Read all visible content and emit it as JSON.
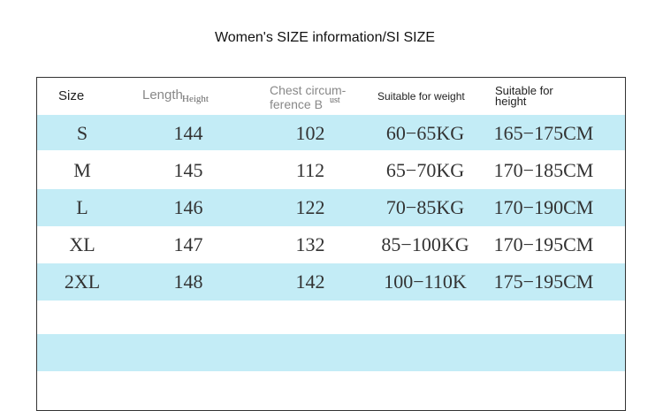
{
  "header": {
    "title": "Women's SIZE information/SI SIZE"
  },
  "table": {
    "headers": {
      "size": "Size",
      "length": "Length",
      "height_overlay": "Height",
      "chest_line1": "Chest circum-",
      "chest_line2": "ference B",
      "chest_overlay": "ust",
      "weight": "Suitable for weight",
      "height_line1": "Suitable for",
      "height_line2": "height"
    },
    "rows": [
      [
        "S",
        "144",
        "102",
        "60−65KG",
        "165−175CM"
      ],
      [
        "M",
        "145",
        "112",
        "65−70KG",
        "170−185CM"
      ],
      [
        "L",
        "146",
        "122",
        "70−85KG",
        "170−190CM"
      ],
      [
        "XL",
        "147",
        "132",
        "85−100KG",
        "170−195CM"
      ],
      [
        "2XL",
        "148",
        "142",
        "100−110K",
        "175−195CM"
      ]
    ]
  }
}
